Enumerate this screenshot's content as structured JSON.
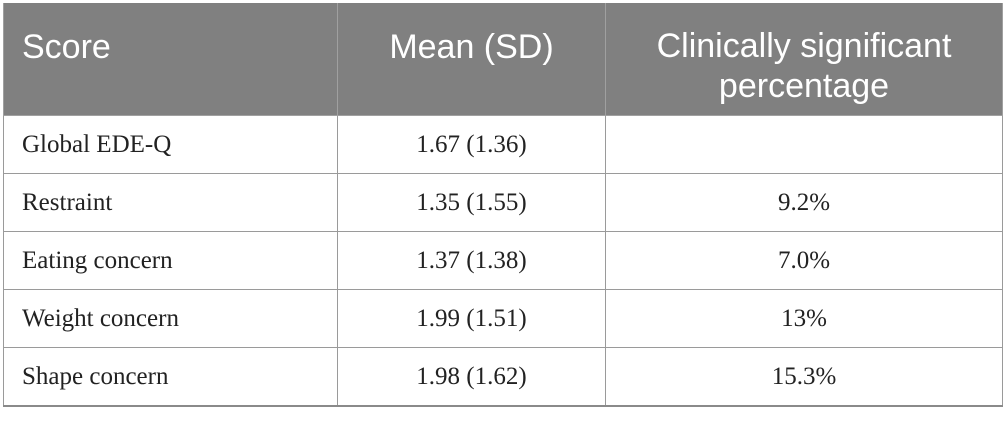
{
  "table": {
    "headers": {
      "score": "Score",
      "mean": "Mean (SD)",
      "pct_line1": "Clinically significant",
      "pct_line2": "percentage"
    },
    "rows": [
      {
        "score": "Global EDE-Q",
        "mean": "1.67 (1.36)",
        "pct": ""
      },
      {
        "score": "Restraint",
        "mean": "1.35 (1.55)",
        "pct": "9.2%"
      },
      {
        "score": "Eating concern",
        "mean": "1.37 (1.38)",
        "pct": "7.0%"
      },
      {
        "score": "Weight concern",
        "mean": "1.99 (1.51)",
        "pct": "13%"
      },
      {
        "score": "Shape concern",
        "mean": "1.98 (1.62)",
        "pct": "15.3%"
      }
    ]
  }
}
